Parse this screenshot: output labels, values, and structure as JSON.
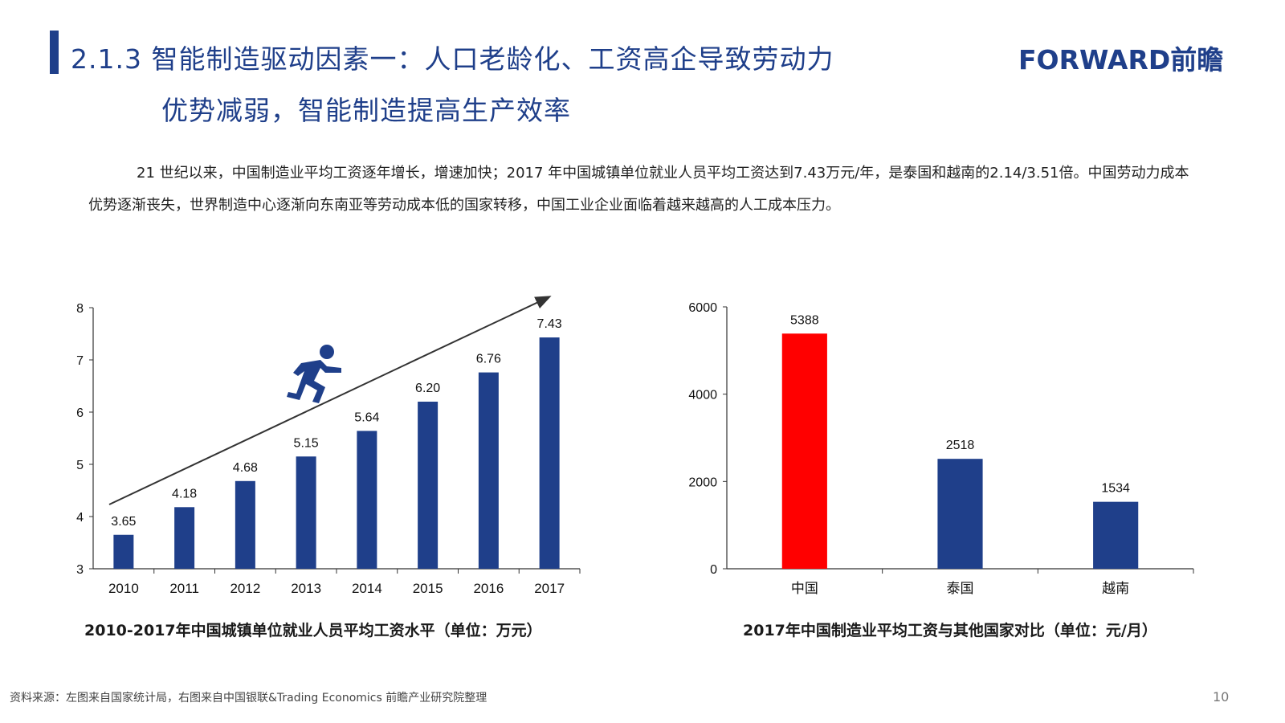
{
  "header": {
    "title_line1": "2.1.3 智能制造驱动因素一：人口老龄化、工资高企导致劳动力",
    "title_line2": "优势减弱，智能制造提高生产效率",
    "logo": "FORWARD前瞻",
    "accent_color": "#1f3f8a"
  },
  "body": {
    "paragraph": "21 世纪以来，中国制造业平均工资逐年增长，增速加快；2017 年中国城镇单位就业人员平均工资达到7.43万元/年，是泰国和越南的2.14/3.51倍。中国劳动力成本优势逐渐丧失，世界制造中心逐渐向东南亚等劳动成本低的国家转移，中国工业企业面临着越来越高的人工成本压力。"
  },
  "chart_data": [
    {
      "type": "bar",
      "categories": [
        "2010",
        "2011",
        "2012",
        "2013",
        "2014",
        "2015",
        "2016",
        "2017"
      ],
      "values": [
        3.65,
        4.18,
        4.68,
        5.15,
        5.64,
        6.2,
        6.76,
        7.43
      ],
      "data_labels": [
        "3.65",
        "4.18",
        "4.68",
        "5.15",
        "5.64",
        "6.20",
        "6.76",
        "7.43"
      ],
      "title": "2010-2017年中国城镇单位就业人员平均工资水平（单位：万元）",
      "ylim": [
        3,
        8
      ],
      "yticks": [
        "3",
        "4",
        "5",
        "6",
        "7",
        "8"
      ],
      "bar_color": "#1f3f8a",
      "annotation": "upward trend arrow with running person icon",
      "grid": false
    },
    {
      "type": "bar",
      "categories": [
        "中国",
        "泰国",
        "越南"
      ],
      "values": [
        5388,
        2518,
        1534
      ],
      "data_labels": [
        "5388",
        "2518",
        "1534"
      ],
      "title": "2017年中国制造业平均工资与其他国家对比（单位：元/月）",
      "ylim": [
        0,
        6000
      ],
      "yticks": [
        "0",
        "2000",
        "4000",
        "6000"
      ],
      "bar_colors": [
        "#ff0000",
        "#1f3f8a",
        "#1f3f8a"
      ],
      "grid": false
    }
  ],
  "footer": {
    "source": "资料来源：左图来自国家统计局，右图来自中国银联&Trading Economics 前瞻产业研究院整理",
    "page_number": "10"
  }
}
